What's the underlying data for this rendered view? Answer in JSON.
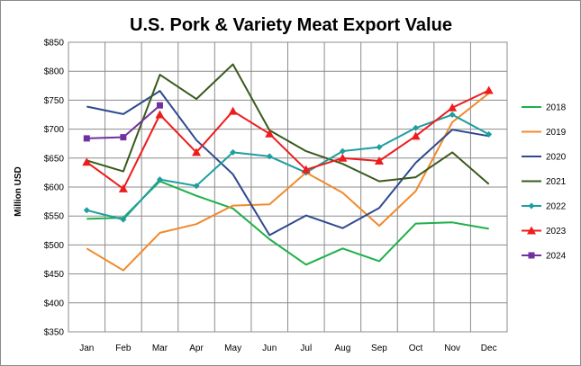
{
  "chart_data": {
    "type": "line",
    "title": "U.S. Pork & Variety Meat Export Value",
    "ylabel": "Million USD",
    "xlabel": "",
    "categories": [
      "Jan",
      "Feb",
      "Mar",
      "Apr",
      "May",
      "Jun",
      "Jul",
      "Aug",
      "Sep",
      "Oct",
      "Nov",
      "Dec"
    ],
    "ylim": [
      350,
      850
    ],
    "yticks": [
      350,
      400,
      450,
      500,
      550,
      600,
      650,
      700,
      750,
      800,
      850
    ],
    "ytick_labels": [
      "$350",
      "$400",
      "$450",
      "$500",
      "$550",
      "$600",
      "$650",
      "$700",
      "$750",
      "$800",
      "$850"
    ],
    "grid": true,
    "legend_position": "right",
    "series": [
      {
        "name": "2018",
        "color": "#1fb04b",
        "marker": "none",
        "values": [
          545,
          547,
          610,
          585,
          563,
          510,
          466,
          494,
          472,
          537,
          539,
          528
        ]
      },
      {
        "name": "2019",
        "color": "#f08a2c",
        "marker": "none",
        "values": [
          494,
          456,
          521,
          536,
          568,
          570,
          625,
          590,
          533,
          593,
          712,
          762
        ]
      },
      {
        "name": "2020",
        "color": "#2e4a8f",
        "marker": "none",
        "values": [
          739,
          726,
          766,
          681,
          622,
          517,
          551,
          529,
          564,
          642,
          699,
          688
        ]
      },
      {
        "name": "2021",
        "color": "#3a5a1d",
        "marker": "none",
        "values": [
          646,
          627,
          794,
          752,
          812,
          698,
          662,
          640,
          610,
          617,
          660,
          605
        ]
      },
      {
        "name": "2022",
        "color": "#1e9e9e",
        "marker": "diamond",
        "values": [
          560,
          544,
          613,
          602,
          660,
          653,
          625,
          662,
          669,
          702,
          725,
          691
        ]
      },
      {
        "name": "2023",
        "color": "#ee1c1c",
        "marker": "triangle",
        "values": [
          643,
          597,
          725,
          660,
          731,
          692,
          630,
          650,
          645,
          688,
          737,
          767
        ]
      },
      {
        "name": "2024",
        "color": "#7030a0",
        "marker": "square",
        "values": [
          684,
          686,
          741,
          null,
          null,
          null,
          null,
          null,
          null,
          null,
          null,
          null
        ]
      }
    ]
  }
}
